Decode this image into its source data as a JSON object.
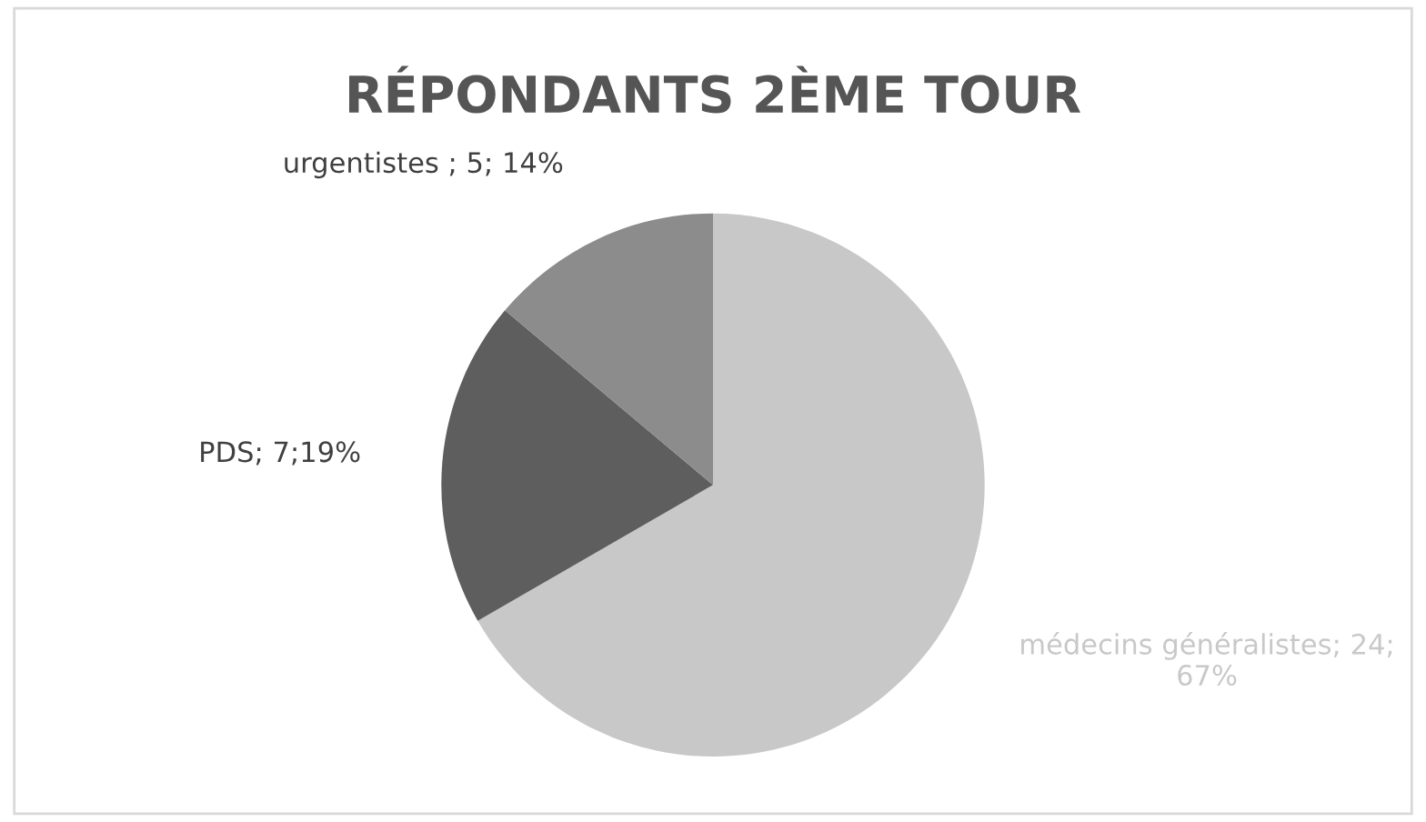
{
  "chart_data": {
    "type": "pie",
    "title": "RÉPONDANTS 2ÈME TOUR",
    "categories": [
      "médecins généralistes",
      "PDS",
      "urgentistes"
    ],
    "values": [
      24,
      7,
      5
    ],
    "colors": [
      "#c8c8c8",
      "#5e5e5e",
      "#8c8c8c"
    ],
    "value_labels": [
      "; 24;\n67%",
      "; 7;19%",
      " ; 5; 14%"
    ],
    "legend": false
  }
}
